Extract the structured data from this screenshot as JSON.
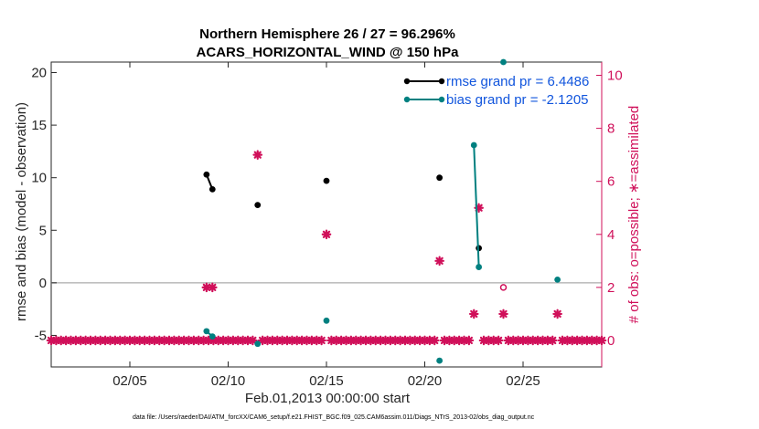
{
  "chart_data": {
    "type": "scatter",
    "title_line1": "Northern Hemisphere 26 / 27 = 96.296%",
    "title_line2": "ACARS_HORIZONTAL_WIND @ 150 hPa",
    "xlabel": "Feb.01,2013 00:00:00 start",
    "ylabel_left": "rmse and bias (model - observation)",
    "ylabel_right": "# of obs: o=possible; ∗=assimilated",
    "xlim": [
      1,
      29
    ],
    "ylim_left": [
      -8,
      21
    ],
    "ylim_right": [
      -1.0,
      10.5
    ],
    "x_ticks": [
      5,
      10,
      15,
      20,
      25
    ],
    "x_tick_labels": [
      "02/05",
      "02/10",
      "02/15",
      "02/20",
      "02/25"
    ],
    "y_ticks_left": [
      -5,
      0,
      5,
      10,
      15,
      20
    ],
    "y_tick_labels_left": [
      "-5",
      "0",
      "5",
      "10",
      "15",
      "20"
    ],
    "y_ticks_right": [
      0,
      2,
      4,
      6,
      8,
      10
    ],
    "y_tick_labels_right": [
      "0",
      "2",
      "4",
      "6",
      "8",
      "10"
    ],
    "zero_line": 0,
    "series": [
      {
        "name": "rmse",
        "legend": "rmse grand pr = 6.4486",
        "color": "#000000",
        "axis": "left",
        "segments": [
          [
            [
              8.9,
              10.3
            ],
            [
              9.2,
              8.9
            ]
          ],
          [
            [
              11.5,
              7.4
            ]
          ],
          [
            [
              15.0,
              9.7
            ]
          ],
          [
            [
              20.75,
              10.0
            ]
          ],
          [
            [
              22.75,
              3.3
            ]
          ]
        ]
      },
      {
        "name": "bias",
        "legend": "bias grand pr = -2.1205",
        "color": "#008080",
        "axis": "left",
        "segments": [
          [
            [
              8.9,
              -4.6
            ],
            [
              9.2,
              -5.1
            ]
          ],
          [
            [
              11.5,
              -5.8
            ]
          ],
          [
            [
              15.0,
              -3.6
            ]
          ],
          [
            [
              20.75,
              -7.4
            ]
          ],
          [
            [
              22.5,
              13.1
            ],
            [
              22.75,
              1.5
            ]
          ],
          [
            [
              24.0,
              21.0
            ]
          ],
          [
            [
              26.75,
              0.3
            ]
          ]
        ]
      }
    ],
    "obs_possible": {
      "name": "possible",
      "marker": "o",
      "color": "#d0105a",
      "points": [
        [
          24.0,
          2
        ]
      ]
    },
    "obs_assimilated": {
      "name": "assimilated",
      "marker": "*",
      "color": "#d0105a",
      "nonzero_points": [
        [
          8.9,
          2
        ],
        [
          9.2,
          2
        ],
        [
          11.5,
          7
        ],
        [
          15.0,
          4
        ],
        [
          20.75,
          3
        ],
        [
          22.5,
          1
        ],
        [
          22.75,
          5
        ],
        [
          24.0,
          1
        ],
        [
          26.75,
          1
        ]
      ],
      "zero_from": 1.0,
      "zero_to": 29.0,
      "zero_step": 0.25
    }
  },
  "footer": "data file: /Users/raeder/DAI/ATM_forcXX/CAM6_setup/f.e21.FHIST_BGC.f09_025.CAM6assim.011/Diags_NTrS_2013-02/obs_diag_output.nc",
  "colors": {
    "rmse": "#000000",
    "bias": "#008080",
    "obs": "#d0105a",
    "zero_line": "#bfbfbf",
    "legend_text": "#1155dd"
  }
}
